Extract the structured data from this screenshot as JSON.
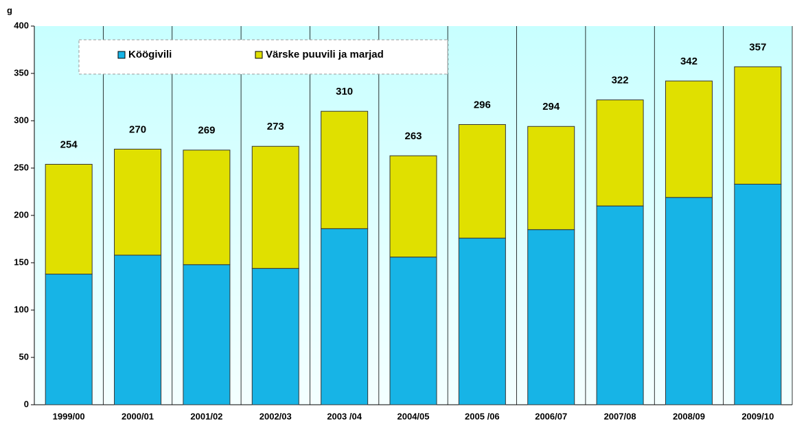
{
  "chart_data": {
    "type": "bar",
    "stacked": true,
    "y_label": "g",
    "categories": [
      "1999/00",
      "2000/01",
      "2001/02",
      "2002/03",
      "2003 /04",
      "2004/05",
      "2005 /06",
      "2006/07",
      "2007/08",
      "2008/09",
      "2009/10"
    ],
    "series": [
      {
        "name": "Köögivili",
        "color": "#17b4e6",
        "values": [
          138,
          158,
          148,
          144,
          186,
          156,
          176,
          185,
          210,
          219,
          233
        ]
      },
      {
        "name": "Värske puuvili ja marjad",
        "color": "#e0e000",
        "values": [
          116,
          112,
          121,
          129,
          124,
          107,
          120,
          109,
          112,
          123,
          124
        ]
      }
    ],
    "totals": [
      254,
      270,
      269,
      273,
      310,
      263,
      296,
      294,
      322,
      342,
      357
    ],
    "ylim": [
      0,
      400
    ],
    "yticks": [
      0,
      50,
      100,
      150,
      200,
      250,
      300,
      350,
      400
    ],
    "grid": false
  }
}
